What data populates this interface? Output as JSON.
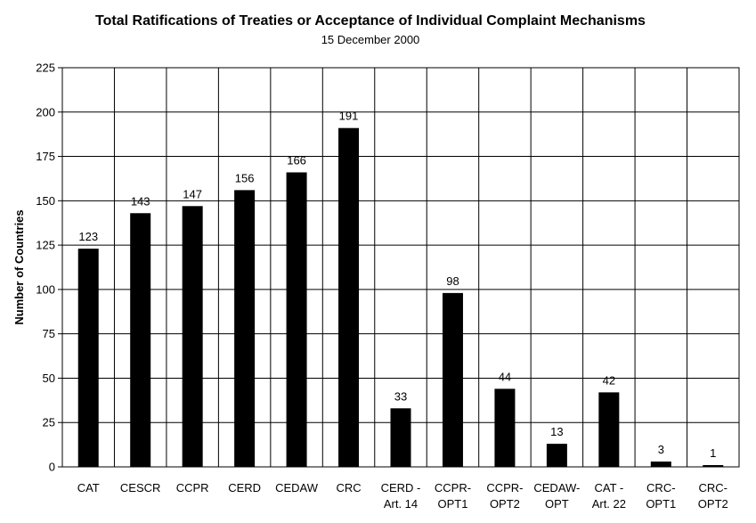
{
  "chart_data": {
    "type": "bar",
    "title": "Total Ratifications of Treaties or Acceptance of Individual Complaint Mechanisms",
    "subtitle": "15 December 2000",
    "xlabel": "",
    "ylabel": "Number of Countries",
    "ylim": [
      0,
      225
    ],
    "yticks": [
      0,
      25,
      50,
      75,
      100,
      125,
      150,
      175,
      200,
      225
    ],
    "ytick_labels": [
      "0",
      "25",
      "50",
      "75",
      "100",
      "125",
      "150",
      "175",
      "200",
      "225"
    ],
    "grid": true,
    "legend": "none",
    "bar_color": "#000000",
    "categories": [
      [
        "CAT"
      ],
      [
        "CESCR"
      ],
      [
        "CCPR"
      ],
      [
        "CERD"
      ],
      [
        "CEDAW"
      ],
      [
        "CRC"
      ],
      [
        "CERD -",
        "Art. 14"
      ],
      [
        "CCPR-",
        "OPT1"
      ],
      [
        "CCPR-",
        "OPT2"
      ],
      [
        "CEDAW-",
        "OPT"
      ],
      [
        "CAT -",
        "Art. 22"
      ],
      [
        "CRC-",
        "OPT1"
      ],
      [
        "CRC-",
        "OPT2"
      ]
    ],
    "values": [
      123,
      143,
      147,
      156,
      166,
      191,
      33,
      98,
      44,
      13,
      42,
      3,
      1
    ],
    "data_labels": [
      "123",
      "143",
      "147",
      "156",
      "166",
      "191",
      "33",
      "98",
      "44",
      "13",
      "42",
      "3",
      "1"
    ]
  }
}
